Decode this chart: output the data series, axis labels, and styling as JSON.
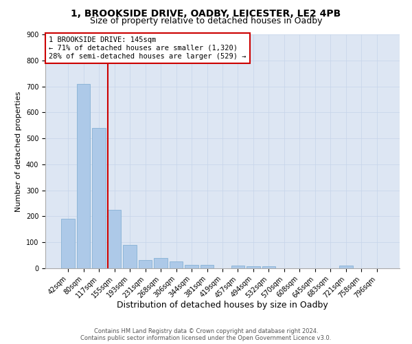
{
  "title1": "1, BROOKSIDE DRIVE, OADBY, LEICESTER, LE2 4PB",
  "title2": "Size of property relative to detached houses in Oadby",
  "xlabel": "Distribution of detached houses by size in Oadby",
  "ylabel": "Number of detached properties",
  "bar_color": "#adc9e8",
  "bar_edge_color": "#7aaad0",
  "background_color": "#dde6f3",
  "categories": [
    "42sqm",
    "80sqm",
    "117sqm",
    "155sqm",
    "193sqm",
    "231sqm",
    "268sqm",
    "306sqm",
    "344sqm",
    "381sqm",
    "419sqm",
    "457sqm",
    "494sqm",
    "532sqm",
    "570sqm",
    "608sqm",
    "645sqm",
    "683sqm",
    "721sqm",
    "758sqm",
    "796sqm"
  ],
  "values": [
    190,
    710,
    540,
    225,
    90,
    32,
    40,
    27,
    12,
    12,
    0,
    10,
    8,
    8,
    0,
    0,
    0,
    0,
    10,
    0,
    0
  ],
  "vline_color": "#cc0000",
  "ylim": [
    0,
    900
  ],
  "yticks": [
    0,
    100,
    200,
    300,
    400,
    500,
    600,
    700,
    800,
    900
  ],
  "annotation_title": "1 BROOKSIDE DRIVE: 145sqm",
  "annotation_line1": "← 71% of detached houses are smaller (1,320)",
  "annotation_line2": "28% of semi-detached houses are larger (529) →",
  "footer1": "Contains HM Land Registry data © Crown copyright and database right 2024.",
  "footer2": "Contains public sector information licensed under the Open Government Licence v3.0.",
  "grid_color": "#c5d4ea",
  "title1_fontsize": 10,
  "title2_fontsize": 9,
  "xlabel_fontsize": 9,
  "ylabel_fontsize": 8,
  "tick_fontsize": 7,
  "annotation_fontsize": 7.5,
  "footer_fontsize": 6
}
